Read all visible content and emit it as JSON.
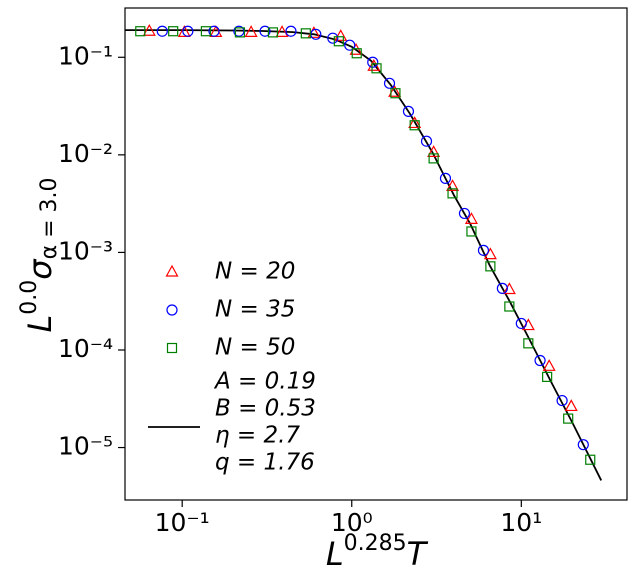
{
  "chart_data": {
    "type": "scatter",
    "xlabel": {
      "base": "L",
      "sup": "0.285",
      "tail": "T"
    },
    "ylabel": {
      "base": "L",
      "sup": "0.0",
      "main": "σ",
      "sub": "α = 3.0"
    },
    "xscale": "log",
    "yscale": "log",
    "xlim": [
      0.046,
      42
    ],
    "ylim": [
      2.9e-06,
      0.32
    ],
    "xticks": [
      {
        "value": 0.1,
        "label": "10⁻¹"
      },
      {
        "value": 1,
        "label": "10⁰"
      },
      {
        "value": 10,
        "label": "10¹"
      }
    ],
    "yticks": [
      {
        "value": 1e-05,
        "label": "10⁻⁵"
      },
      {
        "value": 0.0001,
        "label": "10⁻⁴"
      },
      {
        "value": 0.001,
        "label": "10⁻³"
      },
      {
        "value": 0.01,
        "label": "10⁻²"
      },
      {
        "value": 0.1,
        "label": "10⁻¹"
      }
    ],
    "series": [
      {
        "name": "N = 20",
        "marker": "triangle",
        "color": "#ff0000",
        "x": [
          0.064,
          0.103,
          0.158,
          0.255,
          0.388,
          0.598,
          0.861,
          1.06,
          1.35,
          1.79,
          2.35,
          3.04,
          3.93,
          5.08,
          6.57,
          8.5,
          11.0,
          14.6,
          19.7
        ],
        "values": [
          0.185,
          0.18,
          0.18,
          0.18,
          0.18,
          0.176,
          0.164,
          0.118,
          0.081,
          0.0438,
          0.021,
          0.0106,
          0.00475,
          0.00218,
          0.00095,
          0.000417,
          0.000178,
          6.8e-05,
          2.64e-05
        ]
      },
      {
        "name": "N = 35",
        "marker": "circle",
        "color": "#0000ff",
        "x": [
          0.0763,
          0.108,
          0.154,
          0.216,
          0.308,
          0.438,
          0.614,
          0.773,
          0.973,
          1.33,
          1.67,
          2.16,
          2.76,
          3.57,
          4.62,
          5.98,
          7.73,
          10.0,
          12.9,
          17.4,
          23.2
        ],
        "values": [
          0.185,
          0.185,
          0.185,
          0.185,
          0.185,
          0.185,
          0.172,
          0.157,
          0.133,
          0.0889,
          0.0541,
          0.0279,
          0.0138,
          0.00574,
          0.00251,
          0.00105,
          0.000428,
          0.000187,
          7.8e-05,
          3.03e-05,
          1.07e-05
        ]
      },
      {
        "name": "N = 50",
        "marker": "square",
        "color": "#008000",
        "x": [
          0.0566,
          0.0885,
          0.138,
          0.219,
          0.343,
          0.536,
          0.839,
          1.07,
          1.4,
          1.81,
          2.35,
          3.04,
          3.93,
          5.08,
          6.57,
          8.5,
          11.0,
          14.2,
          18.9,
          25.5
        ],
        "values": [
          0.185,
          0.185,
          0.185,
          0.18,
          0.18,
          0.176,
          0.146,
          0.11,
          0.0771,
          0.0428,
          0.0201,
          0.0092,
          0.00403,
          0.00164,
          0.00072,
          0.000279,
          0.000117,
          5.3e-05,
          1.98e-05,
          7.5e-06
        ]
      }
    ],
    "fit": {
      "legend_lines": [
        "A = 0.19",
        "B = 0.53",
        "η = 2.7",
        "q = 1.76"
      ],
      "color": "#000000",
      "x": [
        0.046,
        0.1,
        0.2,
        0.3,
        0.45,
        0.6,
        0.8,
        1.0,
        1.3,
        1.7,
        2.2,
        3,
        4,
        5,
        6.5,
        8.5,
        11,
        15,
        20,
        29.6
      ],
      "y": [
        0.19,
        0.19,
        0.188,
        0.186,
        0.181,
        0.172,
        0.152,
        0.128,
        0.092,
        0.052,
        0.0265,
        0.0105,
        0.00387,
        0.00196,
        0.00074,
        0.00032,
        0.000135,
        4.7e-05,
        1.8e-05,
        4.6e-06
      ]
    }
  }
}
